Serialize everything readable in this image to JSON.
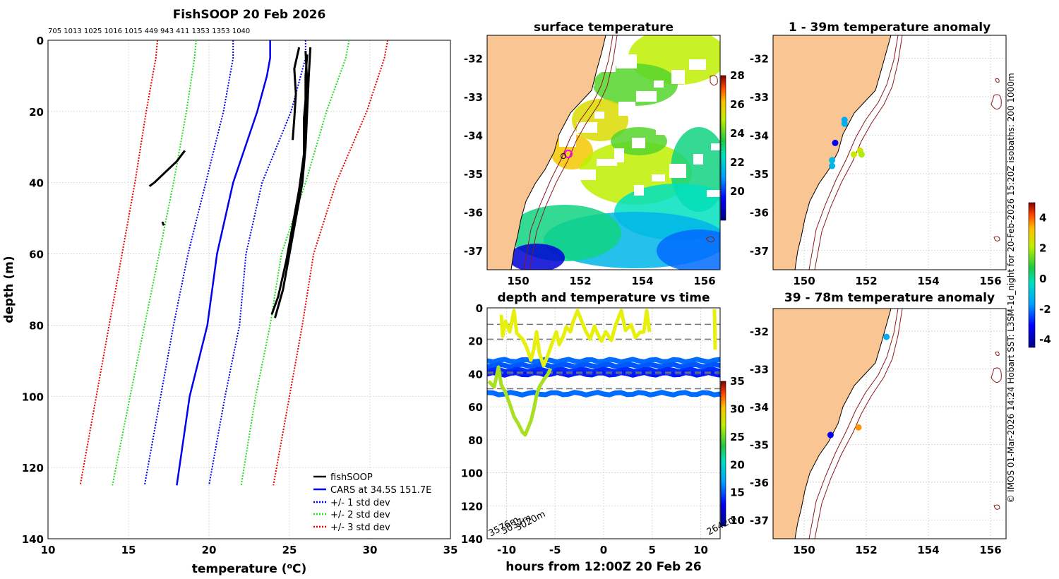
{
  "colors": {
    "fishsoop": "#000000",
    "cars": "#0000ee",
    "std1": "#0000ee",
    "std2": "#22dd22",
    "std3": "#ee0000",
    "land": "#f9c592",
    "isobath": "#8b1a1a",
    "grid": "#cfcfcf",
    "dash": "#777777",
    "trace": "#e6f00a"
  },
  "chart_data": [
    {
      "id": "profile",
      "type": "line",
      "title": "FishSOOP 20 Feb 2026",
      "xlabel_main": "temperature (",
      "xlabel_sup": "o",
      "xlabel_end": "C)",
      "ylabel": "depth (m)",
      "xlim": [
        10,
        35
      ],
      "ylim": [
        0,
        140
      ],
      "x_ticks": [
        10,
        15,
        20,
        25,
        30,
        35
      ],
      "y_ticks": [
        0,
        20,
        40,
        60,
        80,
        100,
        120,
        140
      ],
      "depth_counts_text": "705 1013 1025 1016 1015 449 943 411 1353 1353 1040",
      "legend": [
        "fishSOOP",
        "CARS at 34.5S 151.7E",
        "+/- 1 std dev",
        "+/- 2 std dev",
        "+/- 3 std dev"
      ],
      "cars_mean": {
        "depth": [
          0,
          5,
          10,
          20,
          40,
          60,
          80,
          100,
          125
        ],
        "temp": [
          23.8,
          23.8,
          23.6,
          23.0,
          21.5,
          20.5,
          19.9,
          18.8,
          18.0
        ]
      },
      "std1_upper": {
        "depth": [
          0,
          5,
          20,
          40,
          60,
          80,
          100,
          125
        ],
        "temp": [
          21.5,
          21.5,
          20.9,
          19.8,
          18.7,
          17.8,
          17.0,
          16.0
        ]
      },
      "std1_lower": {
        "depth": [
          0,
          5,
          20,
          40,
          60,
          80,
          100,
          125
        ],
        "temp": [
          26.0,
          26.0,
          25.1,
          23.3,
          22.3,
          21.9,
          21.0,
          20.0
        ]
      },
      "std2_upper": {
        "depth": [
          0,
          5,
          20,
          40,
          60,
          80,
          100,
          125
        ],
        "temp": [
          19.2,
          19.1,
          18.6,
          17.8,
          16.9,
          16.0,
          15.1,
          14.0
        ]
      },
      "std2_lower": {
        "depth": [
          0,
          5,
          20,
          40,
          60,
          80,
          100,
          125
        ],
        "temp": [
          28.7,
          28.5,
          27.3,
          26.0,
          24.5,
          23.8,
          22.9,
          22.0
        ]
      },
      "std3_upper": {
        "depth": [
          0,
          5,
          20,
          40,
          60,
          80,
          100,
          125
        ],
        "temp": [
          16.8,
          16.7,
          16.1,
          15.4,
          14.6,
          13.8,
          13.0,
          12.0
        ]
      },
      "std3_lower": {
        "depth": [
          0,
          5,
          20,
          40,
          60,
          80,
          100,
          125
        ],
        "temp": [
          31.1,
          30.9,
          29.8,
          27.9,
          26.5,
          25.8,
          25.0,
          24.0
        ]
      },
      "fishsoop_profiles": [
        {
          "depth": [
            2,
            10,
            20,
            30,
            40,
            50,
            60,
            70,
            78
          ],
          "temp": [
            26.3,
            26.2,
            26.1,
            26.0,
            25.8,
            25.4,
            25.0,
            24.6,
            24.1
          ]
        },
        {
          "depth": [
            3,
            12,
            22,
            32,
            42,
            52,
            62,
            72,
            77
          ],
          "temp": [
            26.0,
            26.1,
            25.9,
            25.9,
            25.6,
            25.2,
            24.8,
            24.3,
            23.9
          ]
        },
        {
          "depth": [
            2,
            8,
            15,
            22,
            28
          ],
          "temp": [
            25.6,
            25.3,
            25.4,
            25.3,
            25.2
          ]
        },
        {
          "depth": [
            4,
            10,
            20,
            32
          ],
          "temp": [
            26.1,
            26.0,
            26.0,
            25.9
          ]
        },
        {
          "depth": [
            31,
            34,
            37,
            40,
            41
          ],
          "temp": [
            18.5,
            18.0,
            17.3,
            16.6,
            16.3
          ]
        },
        {
          "depth": [
            51,
            52
          ],
          "temp": [
            17.1,
            17.2
          ]
        }
      ]
    },
    {
      "id": "surface",
      "type": "heatmap",
      "title": "surface temperature",
      "x_ticks": [
        150,
        152,
        154,
        156
      ],
      "y_ticks": [
        -32,
        -33,
        -34,
        -35,
        -36,
        -37
      ],
      "xlim": [
        149,
        156.5
      ],
      "ylim": [
        -37.5,
        -31.4
      ],
      "colorbar_ticks": [
        20,
        22,
        24,
        26,
        28
      ],
      "colorbar_range": [
        18,
        28
      ]
    },
    {
      "id": "anom1",
      "type": "scatter",
      "title": "1 - 39m temperature anomaly",
      "x_ticks": [
        150,
        152,
        154,
        156
      ],
      "y_ticks": [
        -32,
        -33,
        -34,
        -35,
        -36,
        -37
      ],
      "xlim": [
        149,
        156.5
      ],
      "ylim": [
        -37.5,
        -31.4
      ],
      "points": [
        {
          "lon": 150.9,
          "lat": -34.8,
          "anom": -1.2
        },
        {
          "lon": 150.9,
          "lat": -34.65,
          "anom": -1.1
        },
        {
          "lon": 151.0,
          "lat": -34.2,
          "anom": -3.2
        },
        {
          "lon": 151.3,
          "lat": -33.7,
          "anom": -1.3
        },
        {
          "lon": 151.3,
          "lat": -33.6,
          "anom": -1.4
        },
        {
          "lon": 151.6,
          "lat": -34.5,
          "anom": 2.3
        },
        {
          "lon": 151.8,
          "lat": -34.4,
          "anom": 2.4
        },
        {
          "lon": 151.85,
          "lat": -34.5,
          "anom": 2.0
        }
      ]
    },
    {
      "id": "anom2",
      "type": "scatter",
      "title": "39 - 78m temperature anomaly",
      "x_ticks": [
        150,
        152,
        154,
        156
      ],
      "y_ticks": [
        -32,
        -33,
        -34,
        -35,
        -36,
        -37
      ],
      "xlim": [
        149,
        156.5
      ],
      "ylim": [
        -37.5,
        -31.4
      ],
      "points": [
        {
          "lon": 152.65,
          "lat": -32.15,
          "anom": -1.4
        },
        {
          "lon": 150.85,
          "lat": -34.75,
          "anom": -3.3
        },
        {
          "lon": 151.75,
          "lat": -34.55,
          "anom": 3.6
        }
      ]
    },
    {
      "id": "anom_colorbar",
      "type": "heatmap",
      "colorbar_ticks": [
        4,
        2,
        0,
        -2,
        -4
      ],
      "colorbar_range": [
        -4.5,
        5
      ]
    },
    {
      "id": "timeseries",
      "type": "scatter",
      "title": "depth and temperature vs time",
      "xlabel": "hours from 12:00Z 20 Feb 26",
      "xlim": [
        -12,
        12
      ],
      "ylim": [
        0,
        140
      ],
      "x_ticks": [
        -10,
        -5,
        0,
        5,
        10
      ],
      "y_ticks": [
        0,
        20,
        40,
        60,
        80,
        100,
        120,
        140
      ],
      "colorbar_ticks": [
        10,
        15,
        20,
        25,
        30,
        35
      ],
      "colorbar_range": [
        9,
        35
      ],
      "dashed_depths": [
        10,
        19,
        39,
        40,
        49
      ],
      "annotations": [
        "3576m",
        "3037m",
        "3020m",
        "2642m"
      ],
      "traces": [
        {
          "depth": 32,
          "temp": 15.5
        },
        {
          "depth": 35,
          "temp": 15.0
        },
        {
          "depth": 38,
          "temp": 14.0
        },
        {
          "depth": 40,
          "temp": 13.5
        },
        {
          "depth": 52,
          "temp": 15.5
        }
      ]
    }
  ],
  "right_caption": "© IMOS 01-Mar-2026 14:24 Hobart SST: L3SM-1d_night for 20-Feb-2026 15:20Z isobaths: 200  1000m"
}
